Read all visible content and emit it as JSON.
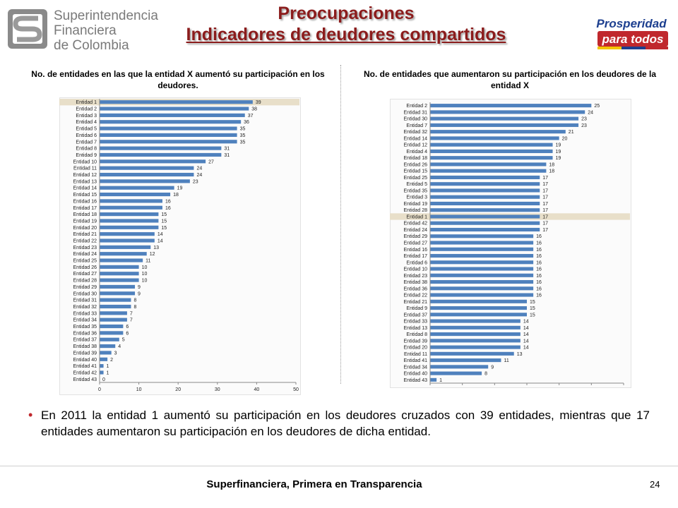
{
  "header": {
    "logo_lines": [
      "Superintendencia",
      "Financiera",
      "de Colombia"
    ],
    "title_line1": "Preocupaciones",
    "title_line2": "Indicadores de deudores compartidos",
    "badge_line1": "Prosperidad",
    "badge_line2": "para todos",
    "colors": {
      "title": "#8B1C1C",
      "bar": "#4F81BD",
      "highlight": "#E8DFC9",
      "bullet": "#C0282D"
    }
  },
  "chart_data": [
    {
      "type": "bar",
      "orientation": "horizontal",
      "title": "No.  de entidades en las que la entidad X aumentó su participación en los deudores.",
      "categories": [
        "Entidad 1",
        "Entidad 2",
        "Entidad 3",
        "Entidad 4",
        "Entidad 5",
        "Entidad 6",
        "Entidad 7",
        "Entidad 8",
        "Entidad 9",
        "Entidad 10",
        "Entidad 11",
        "Entidad 12",
        "Entidad 13",
        "Entidad 14",
        "Entidad 15",
        "Entidad 16",
        "Entidad 17",
        "Entidad 18",
        "Entidad 19",
        "Entidad 20",
        "Entidad 21",
        "Entidad 22",
        "Entidad 23",
        "Entidad 24",
        "Entidad 25",
        "Entidad 26",
        "Entidad 27",
        "Entidad 28",
        "Entidad 29",
        "Entidad 30",
        "Entidad 31",
        "Entidad 32",
        "Entidad 33",
        "Entidad 34",
        "Entidad 35",
        "Entidad 36",
        "Entidad 37",
        "Entidad 38",
        "Entidad 39",
        "Entidad 40",
        "Entidad 41",
        "Entidad 42",
        "Entidad 43"
      ],
      "values": [
        39,
        38,
        37,
        36,
        35,
        35,
        35,
        31,
        31,
        27,
        24,
        24,
        23,
        19,
        18,
        16,
        16,
        15,
        15,
        15,
        14,
        14,
        13,
        12,
        11,
        10,
        10,
        10,
        9,
        9,
        8,
        8,
        7,
        7,
        6,
        6,
        5,
        4,
        3,
        2,
        1,
        1,
        0
      ],
      "xlim": [
        0,
        50
      ],
      "xticks": [
        0,
        10,
        20,
        30,
        40,
        50
      ],
      "highlight": "Entidad 1",
      "grid": false
    },
    {
      "type": "bar",
      "orientation": "horizontal",
      "title": "No. de entidades que aumentaron su participación en los deudores de la entidad X",
      "categories": [
        "Entidad 2",
        "Entidad 31",
        "Entidad 30",
        "Entidad 7",
        "Entidad 32",
        "Entidad 14",
        "Entidad 12",
        "Entidad 4",
        "Entidad 18",
        "Entidad 26",
        "Entidad 15",
        "Entidad 25",
        "Entidad 5",
        "Entidad 35",
        "Entidad 3",
        "Entidad 19",
        "Entidad 28",
        "Entidad 1",
        "Entidad 42",
        "Entidad 24",
        "Entidad 29",
        "Entidad 27",
        "Entidad 16",
        "Entidad 17",
        "Entidad 6",
        "Entidad 10",
        "Entidad 23",
        "Entidad 38",
        "Entidad 36",
        "Entidad 22",
        "Entidad 21",
        "Entidad 9",
        "Entidad 37",
        "Entidad 33",
        "Entidad 13",
        "Entidad 8",
        "Entidad 39",
        "Entidad 20",
        "Entidad 11",
        "Entidad 41",
        "Entidad 34",
        "Entidad 40",
        "Entidad 43"
      ],
      "values": [
        25,
        24,
        23,
        23,
        21,
        20,
        19,
        19,
        19,
        18,
        18,
        17,
        17,
        17,
        17,
        17,
        17,
        17,
        17,
        17,
        16,
        16,
        16,
        16,
        16,
        16,
        16,
        16,
        16,
        16,
        15,
        15,
        15,
        14,
        14,
        14,
        14,
        14,
        13,
        11,
        9,
        8,
        1
      ],
      "xlim": [
        0,
        30
      ],
      "xticks": [
        0,
        5,
        10,
        15,
        20,
        25,
        30
      ],
      "highlight": "Entidad 1",
      "grid": false
    }
  ],
  "bullet_text": "En 2011 la entidad 1 aumentó su participación en los deudores cruzados con 39 entidades, mientras que 17 entidades aumentaron su participación en los deudores de dicha entidad.",
  "footer": {
    "text": "Superfinanciera, Primera en Transparencia",
    "page": "24"
  }
}
